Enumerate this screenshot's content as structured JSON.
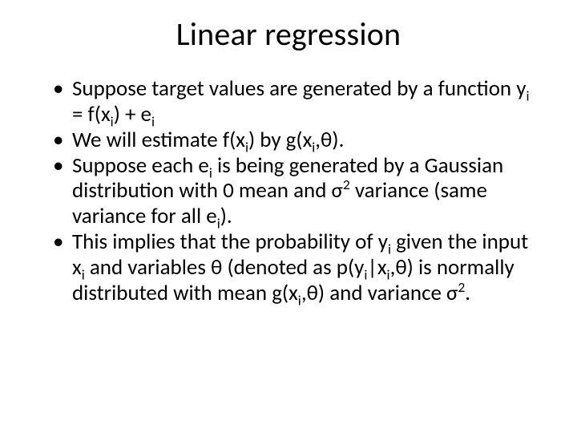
{
  "slide": {
    "title": "Linear regression",
    "title_fontsize": 40,
    "body_fontsize": 27,
    "background_color": "#ffffff",
    "text_color": "#000000",
    "font_family": "Calibri",
    "bullets": [
      {
        "html": "Suppose target values are generated by a function y<sub>i</sub> = f(x<sub>i</sub>) + e<sub>i</sub>"
      },
      {
        "html": "We will estimate f(x<sub>i</sub>) by g(x<sub>i</sub>,θ)."
      },
      {
        "html": "Suppose each e<sub>i</sub> is being generated by a Gaussian distribution with 0 mean and σ<sup>2</sup> variance (same variance for all e<sub>i</sub>)."
      },
      {
        "html": "This implies that the probability of y<sub>i</sub> given the input x<sub>i</sub> and variables θ (denoted as p(y<sub>i</sub>|x<sub>i</sub>,θ) is normally distributed with mean g(x<sub>i</sub>,θ) and variance σ<sup>2</sup>."
      }
    ]
  }
}
